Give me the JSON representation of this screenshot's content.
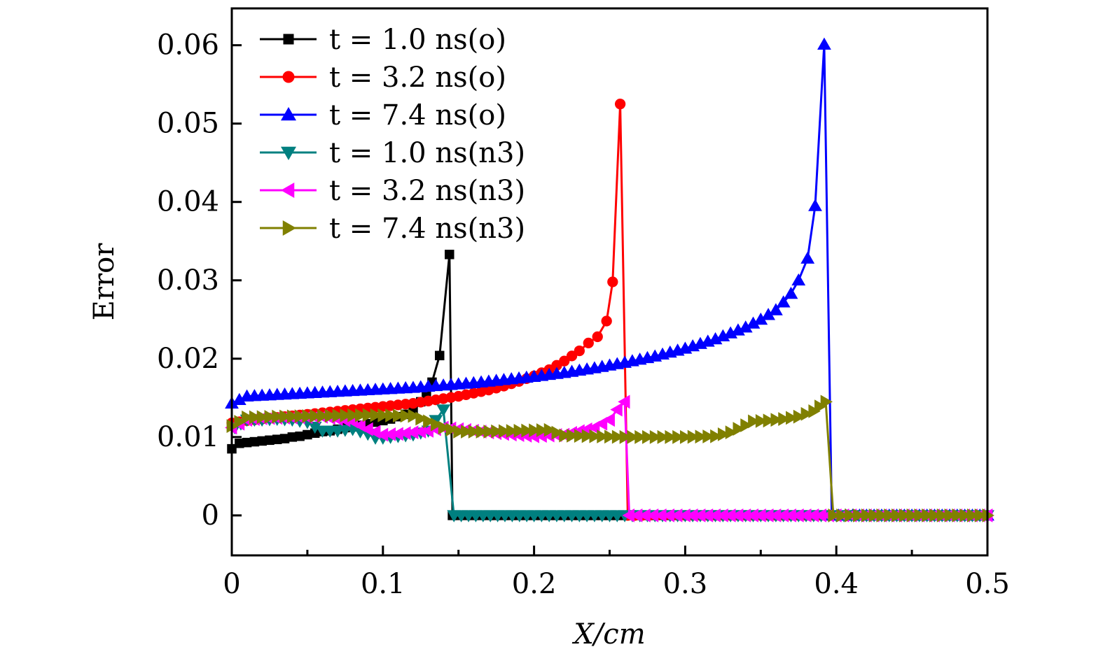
{
  "chart_data": {
    "type": "line",
    "title": "",
    "xlabel": "X/cm",
    "ylabel": "Error",
    "xlim": [
      0,
      0.5
    ],
    "ylim": [
      -0.0051,
      0.0647
    ],
    "xticks": [
      0,
      0.1,
      0.2,
      0.3,
      0.4,
      0.5
    ],
    "xtick_labels": [
      "0",
      "0.1",
      "0.2",
      "0.3",
      "0.4",
      "0.5"
    ],
    "x_minor_ticks": [
      0.05,
      0.15,
      0.25,
      0.35,
      0.45
    ],
    "yticks": [
      0,
      0.01,
      0.02,
      0.03,
      0.04,
      0.05,
      0.06
    ],
    "ytick_labels": [
      "0",
      "0.01",
      "0.02",
      "0.03",
      "0.04",
      "0.05",
      "0.06"
    ],
    "grid": false,
    "legend_position": "top-left",
    "series": [
      {
        "name": "t = 1.0 ns(o)",
        "color": "#000000",
        "marker": "square",
        "x": [
          0.0,
          0.005,
          0.01,
          0.015,
          0.02,
          0.025,
          0.03,
          0.035,
          0.04,
          0.045,
          0.05,
          0.055,
          0.06,
          0.065,
          0.07,
          0.075,
          0.08,
          0.085,
          0.09,
          0.095,
          0.1,
          0.105,
          0.11,
          0.115,
          0.12,
          0.125,
          0.1325,
          0.1375,
          0.144,
          0.146,
          0.15,
          0.2,
          0.25,
          0.3,
          0.35,
          0.4,
          0.45,
          0.5
        ],
        "y": [
          0.0085,
          0.0092,
          0.0093,
          0.0094,
          0.0095,
          0.0096,
          0.0097,
          0.0098,
          0.01,
          0.0101,
          0.0103,
          0.0105,
          0.0107,
          0.0108,
          0.011,
          0.0112,
          0.0113,
          0.0115,
          0.0117,
          0.0119,
          0.0121,
          0.0123,
          0.0126,
          0.0129,
          0.0133,
          0.0145,
          0.017,
          0.0204,
          0.0333,
          0.0,
          0.0,
          0.0,
          0.0,
          0.0,
          0.0,
          0.0,
          0.0,
          0.0
        ]
      },
      {
        "name": "t = 3.2 ns(o)",
        "color": "#ff0000",
        "marker": "circle",
        "x": [
          0.0,
          0.01,
          0.02,
          0.03,
          0.04,
          0.05,
          0.06,
          0.07,
          0.08,
          0.09,
          0.1,
          0.11,
          0.12,
          0.13,
          0.14,
          0.15,
          0.16,
          0.17,
          0.18,
          0.19,
          0.2,
          0.21,
          0.22,
          0.23,
          0.236,
          0.242,
          0.248,
          0.252,
          0.257,
          0.262,
          0.3,
          0.35,
          0.4,
          0.45,
          0.5
        ],
        "y": [
          0.0118,
          0.0121,
          0.0123,
          0.0125,
          0.0127,
          0.0129,
          0.0131,
          0.0133,
          0.0135,
          0.0137,
          0.0139,
          0.0141,
          0.0143,
          0.0146,
          0.0149,
          0.0152,
          0.0156,
          0.016,
          0.0165,
          0.0171,
          0.0178,
          0.0186,
          0.0197,
          0.021,
          0.022,
          0.0228,
          0.0248,
          0.0298,
          0.0525,
          0.0,
          0.0,
          0.0,
          0.0,
          0.0,
          0.0
        ]
      },
      {
        "name": "t = 7.4 ns(o)",
        "color": "#0000ff",
        "marker": "triangle-up",
        "x": [
          0.0,
          0.01,
          0.02,
          0.04,
          0.06,
          0.08,
          0.1,
          0.12,
          0.14,
          0.16,
          0.18,
          0.2,
          0.22,
          0.24,
          0.26,
          0.28,
          0.3,
          0.32,
          0.34,
          0.35,
          0.36,
          0.365,
          0.37,
          0.375,
          0.381,
          0.386,
          0.392,
          0.397,
          0.42,
          0.45,
          0.48,
          0.5
        ],
        "y": [
          0.0143,
          0.0152,
          0.0153,
          0.0155,
          0.0157,
          0.0159,
          0.0161,
          0.0163,
          0.0166,
          0.0169,
          0.0173,
          0.0177,
          0.0182,
          0.0188,
          0.0195,
          0.0203,
          0.0213,
          0.0225,
          0.024,
          0.025,
          0.0262,
          0.0272,
          0.0283,
          0.03,
          0.0328,
          0.0395,
          0.0601,
          0.0,
          0.0,
          0.0,
          0.0,
          0.0
        ]
      },
      {
        "name": "t = 1.0 ns(n3)",
        "color": "#008080",
        "marker": "triangle-down",
        "x": [
          0.002,
          0.01,
          0.02,
          0.03,
          0.04,
          0.05,
          0.055,
          0.06,
          0.07,
          0.08,
          0.09,
          0.095,
          0.1,
          0.11,
          0.12,
          0.13,
          0.14,
          0.147,
          0.2,
          0.25,
          0.3,
          0.35,
          0.4,
          0.45,
          0.5
        ],
        "y": [
          0.0112,
          0.0122,
          0.0122,
          0.0123,
          0.0122,
          0.0119,
          0.0113,
          0.0108,
          0.0108,
          0.011,
          0.0104,
          0.0099,
          0.0099,
          0.0101,
          0.0103,
          0.0108,
          0.0135,
          0.0,
          0.0,
          0.0,
          0.0,
          0.0,
          0.0,
          0.0,
          0.0
        ]
      },
      {
        "name": "t = 3.2 ns(n3)",
        "color": "#ff00ff",
        "marker": "triangle-left",
        "x": [
          0.0,
          0.01,
          0.02,
          0.04,
          0.06,
          0.08,
          0.09,
          0.1,
          0.11,
          0.12,
          0.13,
          0.14,
          0.16,
          0.18,
          0.2,
          0.22,
          0.24,
          0.25,
          0.255,
          0.26,
          0.263,
          0.3,
          0.35,
          0.4,
          0.45,
          0.5
        ],
        "y": [
          0.0112,
          0.0122,
          0.0124,
          0.0125,
          0.0126,
          0.012,
          0.011,
          0.0103,
          0.0104,
          0.0106,
          0.0108,
          0.0112,
          0.0108,
          0.0104,
          0.0101,
          0.0103,
          0.0112,
          0.0122,
          0.0135,
          0.0145,
          0.0,
          0.0,
          0.0,
          0.0,
          0.0,
          0.0
        ]
      },
      {
        "name": "t = 7.4 ns(n3)",
        "color": "#808000",
        "marker": "triangle-right",
        "x": [
          0.0,
          0.01,
          0.03,
          0.06,
          0.09,
          0.12,
          0.13,
          0.14,
          0.15,
          0.17,
          0.19,
          0.21,
          0.22,
          0.24,
          0.26,
          0.28,
          0.3,
          0.32,
          0.33,
          0.34,
          0.345,
          0.355,
          0.365,
          0.375,
          0.385,
          0.393,
          0.398,
          0.42,
          0.45,
          0.48,
          0.5
        ],
        "y": [
          0.0114,
          0.0125,
          0.0126,
          0.0127,
          0.0128,
          0.0127,
          0.012,
          0.0112,
          0.0107,
          0.0107,
          0.0108,
          0.0109,
          0.0102,
          0.0101,
          0.01,
          0.01,
          0.01,
          0.0101,
          0.0106,
          0.0115,
          0.012,
          0.0121,
          0.0123,
          0.0126,
          0.0133,
          0.0145,
          0.0,
          0.0,
          0.0,
          0.0,
          0.0
        ]
      }
    ]
  }
}
